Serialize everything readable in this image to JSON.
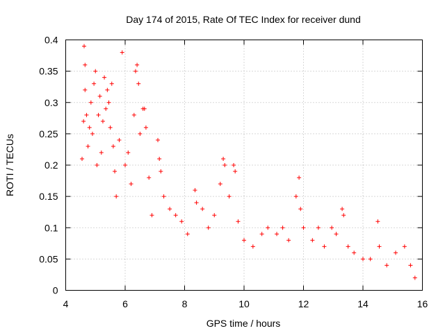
{
  "chart_data": {
    "type": "scatter",
    "title": "Day 174 of 2015, Rate Of TEC Index for receiver dund",
    "xlabel": "GPS time / hours",
    "ylabel": "ROTI / TECUs",
    "xlim": [
      4,
      16
    ],
    "ylim": [
      0,
      0.4
    ],
    "x_ticks": [
      4,
      6,
      8,
      10,
      12,
      14,
      16
    ],
    "x_tick_labels": [
      "4",
      "6",
      "8",
      "10",
      "12",
      "14",
      "16"
    ],
    "y_ticks": [
      0,
      0.05,
      0.1,
      0.15,
      0.2,
      0.25,
      0.3,
      0.35,
      0.4
    ],
    "y_tick_labels": [
      "0",
      "0.05",
      "0.1",
      "0.15",
      "0.2",
      "0.25",
      "0.3",
      "0.35",
      "0.4"
    ],
    "grid": true,
    "marker": "plus",
    "marker_color": "#ff0000",
    "series": [
      {
        "name": "ROTI",
        "points": [
          [
            4.55,
            0.21
          ],
          [
            4.6,
            0.27
          ],
          [
            4.62,
            0.39
          ],
          [
            4.65,
            0.36
          ],
          [
            4.65,
            0.32
          ],
          [
            4.7,
            0.28
          ],
          [
            4.75,
            0.23
          ],
          [
            4.8,
            0.26
          ],
          [
            4.85,
            0.3
          ],
          [
            4.9,
            0.25
          ],
          [
            4.95,
            0.33
          ],
          [
            5.0,
            0.35
          ],
          [
            5.05,
            0.2
          ],
          [
            5.1,
            0.28
          ],
          [
            5.15,
            0.31
          ],
          [
            5.2,
            0.22
          ],
          [
            5.25,
            0.27
          ],
          [
            5.3,
            0.34
          ],
          [
            5.35,
            0.29
          ],
          [
            5.4,
            0.32
          ],
          [
            5.45,
            0.3
          ],
          [
            5.5,
            0.26
          ],
          [
            5.55,
            0.33
          ],
          [
            5.6,
            0.23
          ],
          [
            5.65,
            0.19
          ],
          [
            5.7,
            0.15
          ],
          [
            5.8,
            0.24
          ],
          [
            5.9,
            0.38
          ],
          [
            6.0,
            0.2
          ],
          [
            6.1,
            0.22
          ],
          [
            6.2,
            0.17
          ],
          [
            6.3,
            0.28
          ],
          [
            6.35,
            0.35
          ],
          [
            6.4,
            0.36
          ],
          [
            6.45,
            0.33
          ],
          [
            6.5,
            0.25
          ],
          [
            6.6,
            0.29
          ],
          [
            6.65,
            0.29
          ],
          [
            6.7,
            0.26
          ],
          [
            6.8,
            0.18
          ],
          [
            6.9,
            0.12
          ],
          [
            7.1,
            0.24
          ],
          [
            7.15,
            0.21
          ],
          [
            7.2,
            0.19
          ],
          [
            7.3,
            0.15
          ],
          [
            7.5,
            0.13
          ],
          [
            7.7,
            0.12
          ],
          [
            7.9,
            0.11
          ],
          [
            8.1,
            0.09
          ],
          [
            8.35,
            0.16
          ],
          [
            8.4,
            0.14
          ],
          [
            8.6,
            0.13
          ],
          [
            8.8,
            0.1
          ],
          [
            9.0,
            0.12
          ],
          [
            9.2,
            0.17
          ],
          [
            9.3,
            0.21
          ],
          [
            9.35,
            0.2
          ],
          [
            9.5,
            0.15
          ],
          [
            9.65,
            0.2
          ],
          [
            9.7,
            0.19
          ],
          [
            9.8,
            0.11
          ],
          [
            10.0,
            0.08
          ],
          [
            10.3,
            0.07
          ],
          [
            10.6,
            0.09
          ],
          [
            10.8,
            0.1
          ],
          [
            11.1,
            0.09
          ],
          [
            11.3,
            0.1
          ],
          [
            11.5,
            0.08
          ],
          [
            11.75,
            0.15
          ],
          [
            11.85,
            0.18
          ],
          [
            11.9,
            0.13
          ],
          [
            12.0,
            0.1
          ],
          [
            12.3,
            0.08
          ],
          [
            12.5,
            0.1
          ],
          [
            12.7,
            0.07
          ],
          [
            12.95,
            0.1
          ],
          [
            13.1,
            0.09
          ],
          [
            13.3,
            0.13
          ],
          [
            13.35,
            0.12
          ],
          [
            13.5,
            0.07
          ],
          [
            13.7,
            0.06
          ],
          [
            14.0,
            0.05
          ],
          [
            14.25,
            0.05
          ],
          [
            14.5,
            0.11
          ],
          [
            14.55,
            0.07
          ],
          [
            14.8,
            0.04
          ],
          [
            15.1,
            0.06
          ],
          [
            15.4,
            0.07
          ],
          [
            15.6,
            0.04
          ],
          [
            15.75,
            0.02
          ]
        ]
      }
    ]
  }
}
